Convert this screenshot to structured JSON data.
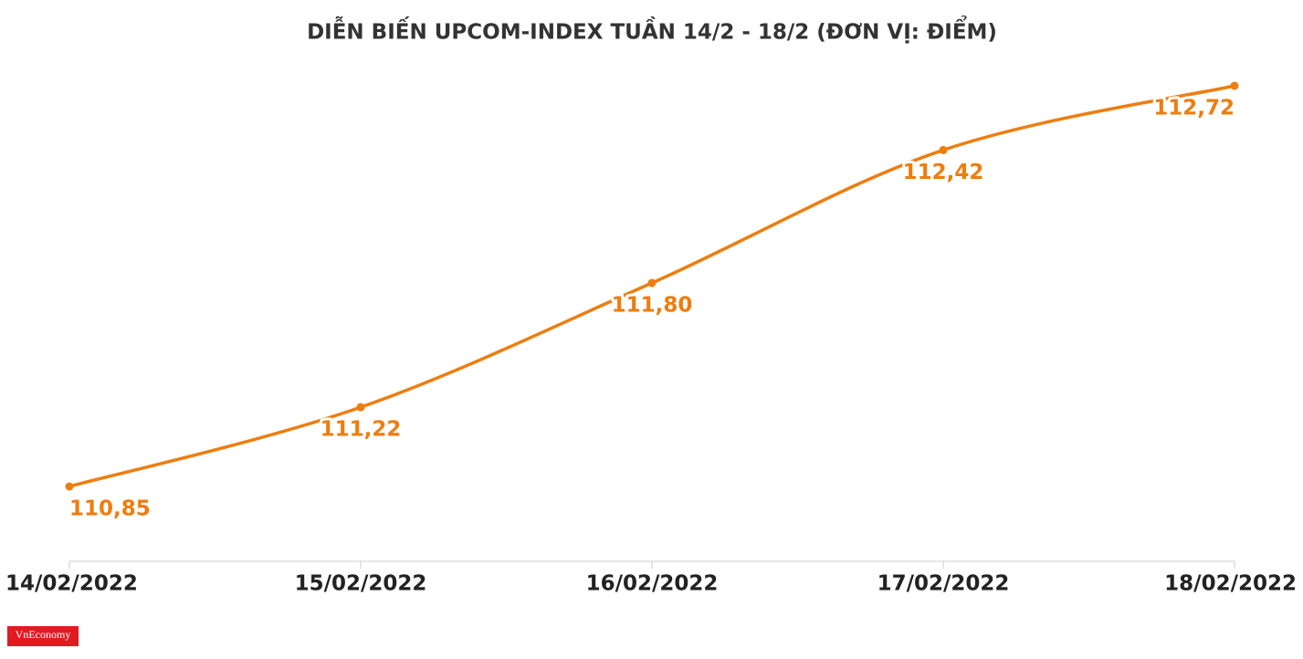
{
  "chart_data": {
    "type": "line",
    "title": "DIỄN BIẾN UPCOM-INDEX TUẦN 14/2 - 18/2 (ĐƠN VỊ: ĐIỂM)",
    "categories": [
      "14/02/2022",
      "15/02/2022",
      "16/02/2022",
      "17/02/2022",
      "18/02/2022"
    ],
    "series": [
      {
        "name": "UPCOM-Index",
        "color": "#ee7d0f",
        "values": [
          110.85,
          111.22,
          111.8,
          112.42,
          112.72
        ],
        "value_labels": [
          "110,85",
          "111,22",
          "111,80",
          "112,42",
          "112,72"
        ]
      }
    ]
  },
  "logo": "VnEconomy"
}
